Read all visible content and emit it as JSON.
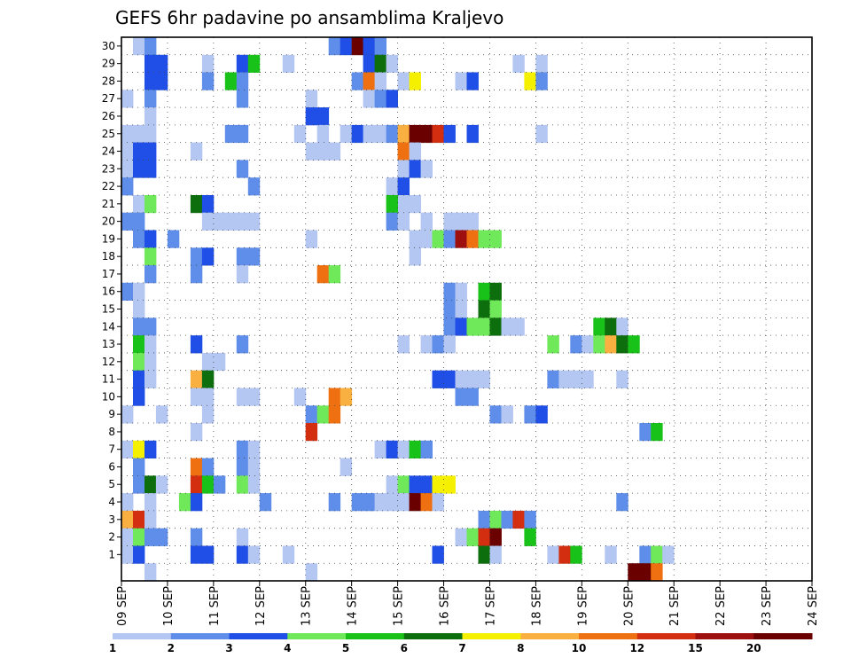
{
  "chart_data": {
    "type": "heatmap",
    "title": "GEFS 6hr padavine po ansamblima Kraljevo",
    "y_tick_labels": [
      "1",
      "2",
      "3",
      "4",
      "5",
      "6",
      "7",
      "8",
      "9",
      "10",
      "11",
      "12",
      "13",
      "14",
      "15",
      "16",
      "17",
      "18",
      "19",
      "20",
      "21",
      "22",
      "23",
      "24",
      "25",
      "26",
      "27",
      "28",
      "29",
      "30"
    ],
    "x_tick_labels": [
      "09 SEP",
      "10 SEP",
      "11 SEP",
      "12 SEP",
      "13 SEP",
      "14 SEP",
      "15 SEP",
      "16 SEP",
      "17 SEP",
      "18 SEP",
      "19 SEP",
      "20 SEP",
      "21 SEP",
      "22 SEP",
      "23 SEP",
      "24 SEP"
    ],
    "colorbar": {
      "levels": [
        "1",
        "2",
        "3",
        "4",
        "5",
        "6",
        "7",
        "8",
        "10",
        "12",
        "15",
        "20"
      ],
      "colors": [
        "#b4c6f2",
        "#5f8eea",
        "#1f4fe6",
        "#6fe85a",
        "#18c218",
        "#0c6e0c",
        "#f5f000",
        "#f9b040",
        "#ef7010",
        "#d32e10",
        "#9e1010",
        "#6a0000"
      ]
    },
    "grid": true,
    "cells": [
      {
        "m": 30,
        "s": [
          [
            1,
            1
          ],
          [
            2,
            2
          ],
          [
            18,
            2
          ],
          [
            19,
            3
          ],
          [
            20,
            12
          ],
          [
            21,
            3
          ],
          [
            22,
            2
          ]
        ]
      },
      {
        "m": 29,
        "s": [
          [
            2,
            3
          ],
          [
            3,
            3
          ],
          [
            7,
            1
          ],
          [
            10,
            3
          ],
          [
            11,
            5
          ],
          [
            14,
            1
          ],
          [
            21,
            3
          ],
          [
            22,
            6
          ],
          [
            23,
            1
          ],
          [
            34,
            1
          ],
          [
            36,
            1
          ]
        ]
      },
      {
        "m": 28,
        "s": [
          [
            2,
            3
          ],
          [
            3,
            3
          ],
          [
            7,
            2
          ],
          [
            9,
            5
          ],
          [
            10,
            2
          ],
          [
            20,
            2
          ],
          [
            21,
            9
          ],
          [
            22,
            1
          ],
          [
            24,
            1
          ],
          [
            25,
            7
          ],
          [
            29,
            1
          ],
          [
            30,
            3
          ],
          [
            35,
            7
          ],
          [
            36,
            2
          ]
        ]
      },
      {
        "m": 27,
        "s": [
          [
            0,
            1
          ],
          [
            2,
            2
          ],
          [
            10,
            2
          ],
          [
            16,
            1
          ],
          [
            21,
            1
          ],
          [
            22,
            2
          ],
          [
            23,
            3
          ]
        ]
      },
      {
        "m": 26,
        "s": [
          [
            2,
            1
          ],
          [
            16,
            3
          ],
          [
            17,
            3
          ]
        ]
      },
      {
        "m": 25,
        "s": [
          [
            0,
            1
          ],
          [
            1,
            1
          ],
          [
            2,
            1
          ],
          [
            9,
            2
          ],
          [
            10,
            2
          ],
          [
            17,
            1
          ],
          [
            15,
            1
          ],
          [
            19,
            1
          ],
          [
            20,
            3
          ],
          [
            21,
            1
          ],
          [
            22,
            1
          ],
          [
            23,
            2
          ],
          [
            24,
            8
          ],
          [
            25,
            12
          ],
          [
            26,
            12
          ],
          [
            27,
            10
          ],
          [
            28,
            3
          ],
          [
            30,
            3
          ],
          [
            36,
            1
          ]
        ]
      },
      {
        "m": 24,
        "s": [
          [
            0,
            1
          ],
          [
            1,
            3
          ],
          [
            2,
            3
          ],
          [
            6,
            1
          ],
          [
            16,
            1
          ],
          [
            17,
            1
          ],
          [
            18,
            1
          ],
          [
            24,
            9
          ],
          [
            25,
            1
          ]
        ]
      },
      {
        "m": 23,
        "s": [
          [
            0,
            1
          ],
          [
            1,
            3
          ],
          [
            2,
            3
          ],
          [
            10,
            2
          ],
          [
            24,
            1
          ],
          [
            25,
            3
          ],
          [
            26,
            1
          ]
        ]
      },
      {
        "m": 22,
        "s": [
          [
            0,
            2
          ],
          [
            11,
            2
          ],
          [
            23,
            1
          ],
          [
            24,
            3
          ]
        ]
      },
      {
        "m": 21,
        "s": [
          [
            1,
            1
          ],
          [
            2,
            4
          ],
          [
            6,
            6
          ],
          [
            7,
            3
          ],
          [
            24,
            1
          ],
          [
            23,
            5
          ],
          [
            25,
            1
          ]
        ]
      },
      {
        "m": 20,
        "s": [
          [
            0,
            2
          ],
          [
            1,
            2
          ],
          [
            7,
            1
          ],
          [
            8,
            1
          ],
          [
            9,
            1
          ],
          [
            10,
            1
          ],
          [
            11,
            1
          ],
          [
            23,
            2
          ],
          [
            24,
            1
          ],
          [
            26,
            1
          ],
          [
            28,
            1
          ],
          [
            29,
            1
          ],
          [
            30,
            1
          ]
        ]
      },
      {
        "m": 19,
        "s": [
          [
            1,
            2
          ],
          [
            2,
            3
          ],
          [
            4,
            2
          ],
          [
            16,
            1
          ],
          [
            25,
            1
          ],
          [
            26,
            1
          ],
          [
            27,
            4
          ],
          [
            28,
            2
          ],
          [
            29,
            11
          ],
          [
            30,
            9
          ],
          [
            31,
            4
          ],
          [
            32,
            4
          ]
        ]
      },
      {
        "m": 18,
        "s": [
          [
            2,
            4
          ],
          [
            6,
            2
          ],
          [
            7,
            3
          ],
          [
            10,
            2
          ],
          [
            11,
            2
          ],
          [
            25,
            1
          ]
        ]
      },
      {
        "m": 17,
        "s": [
          [
            2,
            2
          ],
          [
            6,
            2
          ],
          [
            10,
            1
          ],
          [
            17,
            9
          ],
          [
            18,
            4
          ]
        ]
      },
      {
        "m": 16,
        "s": [
          [
            0,
            2
          ],
          [
            1,
            1
          ],
          [
            28,
            2
          ],
          [
            29,
            1
          ],
          [
            31,
            5
          ],
          [
            32,
            6
          ]
        ]
      },
      {
        "m": 15,
        "s": [
          [
            1,
            1
          ],
          [
            28,
            2
          ],
          [
            29,
            1
          ],
          [
            31,
            6
          ],
          [
            32,
            4
          ]
        ]
      },
      {
        "m": 14,
        "s": [
          [
            1,
            2
          ],
          [
            2,
            2
          ],
          [
            28,
            2
          ],
          [
            29,
            3
          ],
          [
            30,
            4
          ],
          [
            31,
            4
          ],
          [
            32,
            6
          ],
          [
            33,
            1
          ],
          [
            34,
            1
          ],
          [
            41,
            5
          ],
          [
            42,
            6
          ],
          [
            43,
            1
          ]
        ]
      },
      {
        "m": 13,
        "s": [
          [
            1,
            5
          ],
          [
            2,
            1
          ],
          [
            6,
            3
          ],
          [
            10,
            2
          ],
          [
            24,
            1
          ],
          [
            26,
            1
          ],
          [
            27,
            2
          ],
          [
            28,
            1
          ],
          [
            37,
            4
          ],
          [
            39,
            2
          ],
          [
            40,
            1
          ],
          [
            41,
            4
          ],
          [
            42,
            8
          ],
          [
            43,
            6
          ],
          [
            44,
            5
          ]
        ]
      },
      {
        "m": 12,
        "s": [
          [
            1,
            4
          ],
          [
            2,
            1
          ],
          [
            7,
            1
          ],
          [
            8,
            1
          ]
        ]
      },
      {
        "m": 11,
        "s": [
          [
            1,
            3
          ],
          [
            2,
            1
          ],
          [
            6,
            8
          ],
          [
            7,
            6
          ],
          [
            27,
            3
          ],
          [
            28,
            3
          ],
          [
            29,
            1
          ],
          [
            30,
            1
          ],
          [
            31,
            1
          ],
          [
            37,
            2
          ],
          [
            38,
            1
          ],
          [
            39,
            1
          ],
          [
            40,
            1
          ],
          [
            43,
            1
          ]
        ]
      },
      {
        "m": 10,
        "s": [
          [
            1,
            3
          ],
          [
            6,
            1
          ],
          [
            7,
            1
          ],
          [
            10,
            1
          ],
          [
            11,
            1
          ],
          [
            15,
            1
          ],
          [
            18,
            9
          ],
          [
            19,
            8
          ],
          [
            29,
            2
          ],
          [
            30,
            2
          ]
        ]
      },
      {
        "m": 9,
        "s": [
          [
            0,
            1
          ],
          [
            3,
            1
          ],
          [
            7,
            1
          ],
          [
            16,
            2
          ],
          [
            17,
            4
          ],
          [
            18,
            9
          ],
          [
            32,
            2
          ],
          [
            33,
            1
          ],
          [
            35,
            2
          ],
          [
            36,
            3
          ]
        ]
      },
      {
        "m": 8,
        "s": [
          [
            6,
            1
          ],
          [
            16,
            10
          ],
          [
            45,
            2
          ],
          [
            46,
            5
          ]
        ]
      },
      {
        "m": 7,
        "s": [
          [
            0,
            1
          ],
          [
            1,
            7
          ],
          [
            2,
            3
          ],
          [
            10,
            2
          ],
          [
            11,
            1
          ],
          [
            22,
            1
          ],
          [
            23,
            3
          ],
          [
            24,
            1
          ],
          [
            25,
            5
          ],
          [
            26,
            2
          ]
        ]
      },
      {
        "m": 6,
        "s": [
          [
            1,
            2
          ],
          [
            6,
            9
          ],
          [
            7,
            2
          ],
          [
            10,
            2
          ],
          [
            11,
            1
          ],
          [
            19,
            1
          ]
        ]
      },
      {
        "m": 5,
        "s": [
          [
            1,
            2
          ],
          [
            2,
            6
          ],
          [
            3,
            1
          ],
          [
            6,
            10
          ],
          [
            7,
            5
          ],
          [
            8,
            2
          ],
          [
            10,
            4
          ],
          [
            11,
            1
          ],
          [
            23,
            1
          ],
          [
            24,
            4
          ],
          [
            25,
            3
          ],
          [
            26,
            3
          ],
          [
            27,
            7
          ],
          [
            28,
            7
          ]
        ]
      },
      {
        "m": 4,
        "s": [
          [
            0,
            1
          ],
          [
            2,
            1
          ],
          [
            5,
            4
          ],
          [
            6,
            3
          ],
          [
            12,
            2
          ],
          [
            18,
            2
          ],
          [
            21,
            2
          ],
          [
            22,
            1
          ],
          [
            23,
            1
          ],
          [
            20,
            2
          ],
          [
            24,
            1
          ],
          [
            25,
            12
          ],
          [
            26,
            9
          ],
          [
            27,
            1
          ],
          [
            43,
            2
          ]
        ]
      },
      {
        "m": 3,
        "s": [
          [
            0,
            8
          ],
          [
            1,
            10
          ],
          [
            2,
            1
          ],
          [
            31,
            2
          ],
          [
            32,
            4
          ],
          [
            33,
            2
          ],
          [
            34,
            10
          ],
          [
            35,
            2
          ]
        ]
      },
      {
        "m": 2,
        "s": [
          [
            0,
            1
          ],
          [
            1,
            4
          ],
          [
            2,
            2
          ],
          [
            3,
            2
          ],
          [
            6,
            2
          ],
          [
            10,
            1
          ],
          [
            29,
            1
          ],
          [
            30,
            4
          ],
          [
            31,
            10
          ],
          [
            32,
            12
          ],
          [
            35,
            5
          ]
        ]
      },
      {
        "m": 1,
        "s": [
          [
            0,
            1
          ],
          [
            1,
            3
          ],
          [
            6,
            3
          ],
          [
            7,
            3
          ],
          [
            10,
            3
          ],
          [
            11,
            1
          ],
          [
            14,
            1
          ],
          [
            27,
            3
          ],
          [
            31,
            6
          ],
          [
            32,
            1
          ],
          [
            37,
            1
          ],
          [
            38,
            10
          ],
          [
            39,
            5
          ],
          [
            42,
            1
          ],
          [
            45,
            2
          ],
          [
            46,
            4
          ],
          [
            47,
            1
          ]
        ]
      },
      {
        "m": 0,
        "s": [
          [
            2,
            1
          ],
          [
            16,
            1
          ],
          [
            44,
            12
          ],
          [
            45,
            12
          ],
          [
            46,
            9
          ]
        ]
      }
    ]
  }
}
